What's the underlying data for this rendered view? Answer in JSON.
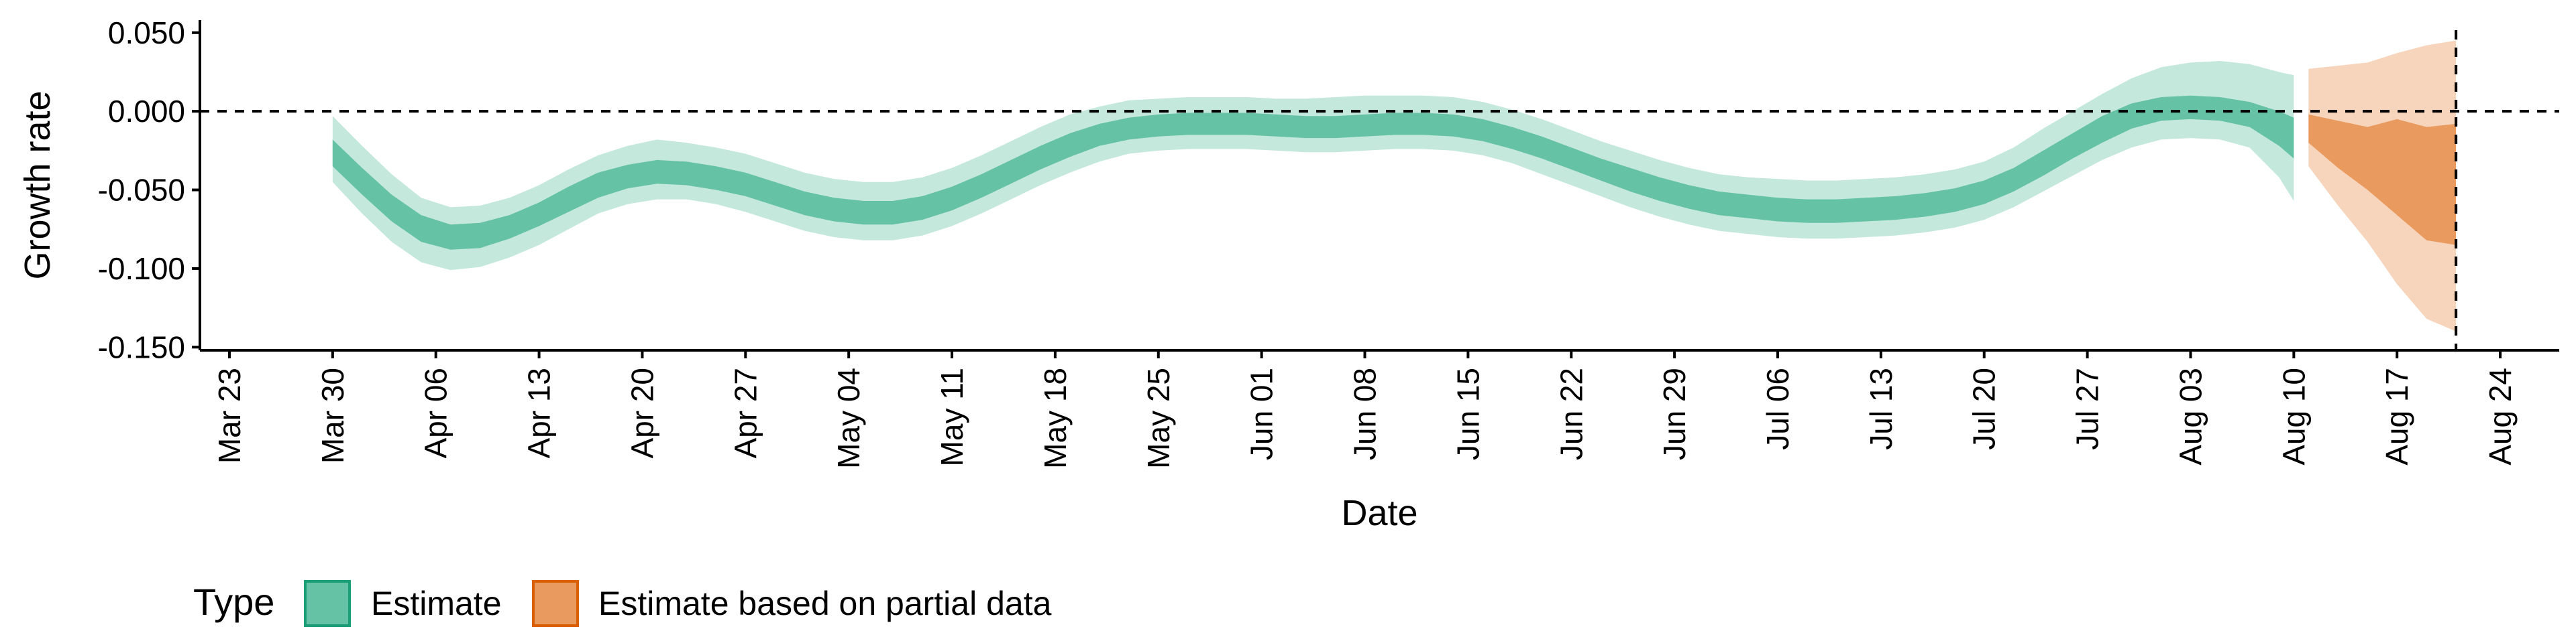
{
  "chart_data": {
    "type": "area",
    "xlabel": "Date",
    "ylabel": "Growth rate",
    "x_range": [
      "2020-03-21",
      "2020-08-28"
    ],
    "ylim": [
      -0.152,
      0.058
    ],
    "y_ticks": [
      {
        "value": 0.05,
        "label": "0.050"
      },
      {
        "value": 0.0,
        "label": "0.000"
      },
      {
        "value": -0.05,
        "label": "-0.050"
      },
      {
        "value": -0.1,
        "label": "-0.100"
      },
      {
        "value": -0.15,
        "label": "-0.150"
      }
    ],
    "x_ticks": [
      {
        "date": "2020-03-23",
        "label": "Mar 23"
      },
      {
        "date": "2020-03-30",
        "label": "Mar 30"
      },
      {
        "date": "2020-04-06",
        "label": "Apr 06"
      },
      {
        "date": "2020-04-13",
        "label": "Apr 13"
      },
      {
        "date": "2020-04-20",
        "label": "Apr 20"
      },
      {
        "date": "2020-04-27",
        "label": "Apr 27"
      },
      {
        "date": "2020-05-04",
        "label": "May 04"
      },
      {
        "date": "2020-05-11",
        "label": "May 11"
      },
      {
        "date": "2020-05-18",
        "label": "May 18"
      },
      {
        "date": "2020-05-25",
        "label": "May 25"
      },
      {
        "date": "2020-06-01",
        "label": "Jun 01"
      },
      {
        "date": "2020-06-08",
        "label": "Jun 08"
      },
      {
        "date": "2020-06-15",
        "label": "Jun 15"
      },
      {
        "date": "2020-06-22",
        "label": "Jun 22"
      },
      {
        "date": "2020-06-29",
        "label": "Jun 29"
      },
      {
        "date": "2020-07-06",
        "label": "Jul 06"
      },
      {
        "date": "2020-07-13",
        "label": "Jul 13"
      },
      {
        "date": "2020-07-20",
        "label": "Jul 20"
      },
      {
        "date": "2020-07-27",
        "label": "Jul 27"
      },
      {
        "date": "2020-08-03",
        "label": "Aug 03"
      },
      {
        "date": "2020-08-10",
        "label": "Aug 10"
      },
      {
        "date": "2020-08-17",
        "label": "Aug 17"
      },
      {
        "date": "2020-08-24",
        "label": "Aug 24"
      }
    ],
    "hline_y": 0,
    "vline_date": "2020-08-21",
    "grid": false,
    "legend": {
      "title": "Type",
      "position": "bottom-left",
      "entries": [
        "Estimate",
        "Estimate based on partial data"
      ]
    },
    "series": [
      {
        "name": "Estimate",
        "fill_dark": "#66c2a5",
        "fill_light": "#c4e8dc",
        "stroke": "#1b9e77",
        "points": [
          {
            "x": "2020-03-30",
            "lo90": -0.045,
            "lo50": -0.035,
            "hi50": -0.018,
            "hi90": -0.003
          },
          {
            "x": "2020-04-01",
            "lo90": -0.065,
            "lo50": -0.053,
            "hi50": -0.036,
            "hi90": -0.022
          },
          {
            "x": "2020-04-03",
            "lo90": -0.083,
            "lo50": -0.07,
            "hi50": -0.053,
            "hi90": -0.04
          },
          {
            "x": "2020-04-05",
            "lo90": -0.096,
            "lo50": -0.083,
            "hi50": -0.066,
            "hi90": -0.055
          },
          {
            "x": "2020-04-07",
            "lo90": -0.101,
            "lo50": -0.088,
            "hi50": -0.072,
            "hi90": -0.061
          },
          {
            "x": "2020-04-09",
            "lo90": -0.099,
            "lo50": -0.087,
            "hi50": -0.071,
            "hi90": -0.06
          },
          {
            "x": "2020-04-11",
            "lo90": -0.093,
            "lo50": -0.081,
            "hi50": -0.066,
            "hi90": -0.055
          },
          {
            "x": "2020-04-13",
            "lo90": -0.085,
            "lo50": -0.073,
            "hi50": -0.058,
            "hi90": -0.047
          },
          {
            "x": "2020-04-15",
            "lo90": -0.075,
            "lo50": -0.064,
            "hi50": -0.048,
            "hi90": -0.037
          },
          {
            "x": "2020-04-17",
            "lo90": -0.065,
            "lo50": -0.055,
            "hi50": -0.039,
            "hi90": -0.028
          },
          {
            "x": "2020-04-19",
            "lo90": -0.059,
            "lo50": -0.049,
            "hi50": -0.034,
            "hi90": -0.022
          },
          {
            "x": "2020-04-21",
            "lo90": -0.056,
            "lo50": -0.046,
            "hi50": -0.031,
            "hi90": -0.018
          },
          {
            "x": "2020-04-23",
            "lo90": -0.056,
            "lo50": -0.047,
            "hi50": -0.032,
            "hi90": -0.02
          },
          {
            "x": "2020-04-25",
            "lo90": -0.059,
            "lo50": -0.05,
            "hi50": -0.035,
            "hi90": -0.023
          },
          {
            "x": "2020-04-27",
            "lo90": -0.064,
            "lo50": -0.054,
            "hi50": -0.039,
            "hi90": -0.027
          },
          {
            "x": "2020-04-29",
            "lo90": -0.07,
            "lo50": -0.06,
            "hi50": -0.045,
            "hi90": -0.033
          },
          {
            "x": "2020-05-01",
            "lo90": -0.076,
            "lo50": -0.066,
            "hi50": -0.051,
            "hi90": -0.039
          },
          {
            "x": "2020-05-03",
            "lo90": -0.08,
            "lo50": -0.07,
            "hi50": -0.055,
            "hi90": -0.043
          },
          {
            "x": "2020-05-05",
            "lo90": -0.082,
            "lo50": -0.072,
            "hi50": -0.057,
            "hi90": -0.045
          },
          {
            "x": "2020-05-07",
            "lo90": -0.082,
            "lo50": -0.072,
            "hi50": -0.057,
            "hi90": -0.045
          },
          {
            "x": "2020-05-09",
            "lo90": -0.079,
            "lo50": -0.069,
            "hi50": -0.054,
            "hi90": -0.042
          },
          {
            "x": "2020-05-11",
            "lo90": -0.073,
            "lo50": -0.063,
            "hi50": -0.048,
            "hi90": -0.036
          },
          {
            "x": "2020-05-13",
            "lo90": -0.065,
            "lo50": -0.055,
            "hi50": -0.04,
            "hi90": -0.028
          },
          {
            "x": "2020-05-15",
            "lo90": -0.056,
            "lo50": -0.046,
            "hi50": -0.031,
            "hi90": -0.019
          },
          {
            "x": "2020-05-17",
            "lo90": -0.047,
            "lo50": -0.037,
            "hi50": -0.022,
            "hi90": -0.01
          },
          {
            "x": "2020-05-19",
            "lo90": -0.039,
            "lo50": -0.029,
            "hi50": -0.014,
            "hi90": -0.002
          },
          {
            "x": "2020-05-21",
            "lo90": -0.032,
            "lo50": -0.022,
            "hi50": -0.008,
            "hi90": 0.003
          },
          {
            "x": "2020-05-23",
            "lo90": -0.027,
            "lo50": -0.018,
            "hi50": -0.004,
            "hi90": 0.007
          },
          {
            "x": "2020-05-25",
            "lo90": -0.025,
            "lo50": -0.016,
            "hi50": -0.002,
            "hi90": 0.008
          },
          {
            "x": "2020-05-27",
            "lo90": -0.024,
            "lo50": -0.015,
            "hi50": -0.001,
            "hi90": 0.009
          },
          {
            "x": "2020-05-29",
            "lo90": -0.024,
            "lo50": -0.015,
            "hi50": -0.001,
            "hi90": 0.009
          },
          {
            "x": "2020-05-31",
            "lo90": -0.024,
            "lo50": -0.015,
            "hi50": -0.001,
            "hi90": 0.009
          },
          {
            "x": "2020-06-02",
            "lo90": -0.025,
            "lo50": -0.016,
            "hi50": -0.002,
            "hi90": 0.008
          },
          {
            "x": "2020-06-04",
            "lo90": -0.026,
            "lo50": -0.017,
            "hi50": -0.003,
            "hi90": 0.008
          },
          {
            "x": "2020-06-06",
            "lo90": -0.026,
            "lo50": -0.017,
            "hi50": -0.003,
            "hi90": 0.009
          },
          {
            "x": "2020-06-08",
            "lo90": -0.025,
            "lo50": -0.016,
            "hi50": -0.002,
            "hi90": 0.01
          },
          {
            "x": "2020-06-10",
            "lo90": -0.024,
            "lo50": -0.015,
            "hi50": -0.001,
            "hi90": 0.01
          },
          {
            "x": "2020-06-12",
            "lo90": -0.024,
            "lo50": -0.015,
            "hi50": -0.001,
            "hi90": 0.01
          },
          {
            "x": "2020-06-14",
            "lo90": -0.025,
            "lo50": -0.016,
            "hi50": -0.002,
            "hi90": 0.009
          },
          {
            "x": "2020-06-16",
            "lo90": -0.028,
            "lo50": -0.019,
            "hi50": -0.005,
            "hi90": 0.006
          },
          {
            "x": "2020-06-18",
            "lo90": -0.033,
            "lo50": -0.024,
            "hi50": -0.01,
            "hi90": 0.001
          },
          {
            "x": "2020-06-20",
            "lo90": -0.04,
            "lo50": -0.03,
            "hi50": -0.016,
            "hi90": -0.005
          },
          {
            "x": "2020-06-22",
            "lo90": -0.047,
            "lo50": -0.037,
            "hi50": -0.023,
            "hi90": -0.012
          },
          {
            "x": "2020-06-24",
            "lo90": -0.054,
            "lo50": -0.044,
            "hi50": -0.03,
            "hi90": -0.019
          },
          {
            "x": "2020-06-26",
            "lo90": -0.061,
            "lo50": -0.051,
            "hi50": -0.036,
            "hi90": -0.025
          },
          {
            "x": "2020-06-28",
            "lo90": -0.067,
            "lo50": -0.057,
            "hi50": -0.042,
            "hi90": -0.031
          },
          {
            "x": "2020-06-30",
            "lo90": -0.072,
            "lo50": -0.062,
            "hi50": -0.047,
            "hi90": -0.036
          },
          {
            "x": "2020-07-02",
            "lo90": -0.076,
            "lo50": -0.066,
            "hi50": -0.051,
            "hi90": -0.04
          },
          {
            "x": "2020-07-04",
            "lo90": -0.078,
            "lo50": -0.068,
            "hi50": -0.053,
            "hi90": -0.042
          },
          {
            "x": "2020-07-06",
            "lo90": -0.08,
            "lo50": -0.07,
            "hi50": -0.055,
            "hi90": -0.043
          },
          {
            "x": "2020-07-08",
            "lo90": -0.081,
            "lo50": -0.071,
            "hi50": -0.056,
            "hi90": -0.044
          },
          {
            "x": "2020-07-10",
            "lo90": -0.081,
            "lo50": -0.071,
            "hi50": -0.056,
            "hi90": -0.044
          },
          {
            "x": "2020-07-12",
            "lo90": -0.08,
            "lo50": -0.07,
            "hi50": -0.055,
            "hi90": -0.043
          },
          {
            "x": "2020-07-14",
            "lo90": -0.079,
            "lo50": -0.069,
            "hi50": -0.054,
            "hi90": -0.042
          },
          {
            "x": "2020-07-16",
            "lo90": -0.077,
            "lo50": -0.067,
            "hi50": -0.052,
            "hi90": -0.04
          },
          {
            "x": "2020-07-18",
            "lo90": -0.074,
            "lo50": -0.064,
            "hi50": -0.049,
            "hi90": -0.037
          },
          {
            "x": "2020-07-20",
            "lo90": -0.069,
            "lo50": -0.059,
            "hi50": -0.044,
            "hi90": -0.032
          },
          {
            "x": "2020-07-22",
            "lo90": -0.061,
            "lo50": -0.051,
            "hi50": -0.036,
            "hi90": -0.023
          },
          {
            "x": "2020-07-24",
            "lo90": -0.051,
            "lo50": -0.041,
            "hi50": -0.025,
            "hi90": -0.011
          },
          {
            "x": "2020-07-26",
            "lo90": -0.041,
            "lo50": -0.03,
            "hi50": -0.014,
            "hi90": 0.0
          },
          {
            "x": "2020-07-28",
            "lo90": -0.031,
            "lo50": -0.02,
            "hi50": -0.003,
            "hi90": 0.011
          },
          {
            "x": "2020-07-30",
            "lo90": -0.023,
            "lo50": -0.011,
            "hi50": 0.005,
            "hi90": 0.021
          },
          {
            "x": "2020-08-01",
            "lo90": -0.018,
            "lo50": -0.006,
            "hi50": 0.009,
            "hi90": 0.028
          },
          {
            "x": "2020-08-03",
            "lo90": -0.017,
            "lo50": -0.005,
            "hi50": 0.01,
            "hi90": 0.031
          },
          {
            "x": "2020-08-05",
            "lo90": -0.018,
            "lo50": -0.006,
            "hi50": 0.009,
            "hi90": 0.032
          },
          {
            "x": "2020-08-07",
            "lo90": -0.023,
            "lo50": -0.01,
            "hi50": 0.006,
            "hi90": 0.03
          },
          {
            "x": "2020-08-09",
            "lo90": -0.042,
            "lo50": -0.022,
            "hi50": 0.0,
            "hi90": 0.025
          },
          {
            "x": "2020-08-10",
            "lo90": -0.057,
            "lo50": -0.03,
            "hi50": -0.004,
            "hi90": 0.023
          }
        ]
      },
      {
        "name": "Estimate based on partial data",
        "fill_dark": "#e89a5f",
        "fill_light": "#f7d5bc",
        "stroke": "#d95f02",
        "points": [
          {
            "x": "2020-08-11",
            "lo90": -0.035,
            "lo50": -0.02,
            "hi50": -0.002,
            "hi90": 0.027
          },
          {
            "x": "2020-08-13",
            "lo90": -0.06,
            "lo50": -0.036,
            "hi50": -0.006,
            "hi90": 0.029
          },
          {
            "x": "2020-08-15",
            "lo90": -0.083,
            "lo50": -0.05,
            "hi50": -0.01,
            "hi90": 0.031
          },
          {
            "x": "2020-08-17",
            "lo90": -0.11,
            "lo50": -0.066,
            "hi50": -0.005,
            "hi90": 0.037
          },
          {
            "x": "2020-08-19",
            "lo90": -0.132,
            "lo50": -0.082,
            "hi50": -0.01,
            "hi90": 0.042
          },
          {
            "x": "2020-08-21",
            "lo90": -0.14,
            "lo50": -0.085,
            "hi50": -0.008,
            "hi90": 0.045
          }
        ]
      }
    ]
  }
}
